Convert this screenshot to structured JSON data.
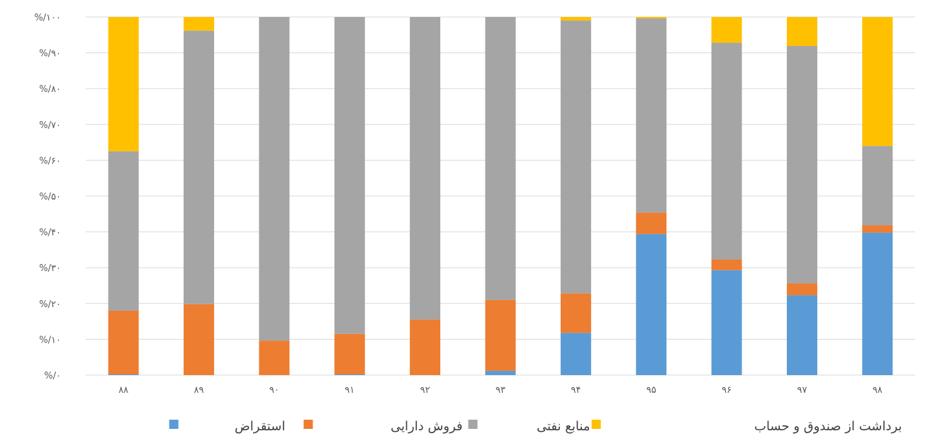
{
  "chart_data": {
    "type": "bar",
    "stacked": true,
    "percent": true,
    "categories": [
      "۸۸",
      "۸۹",
      "۹۰",
      "۹۱",
      "۹۲",
      "۹۳",
      "۹۴",
      "۹۵",
      "۹۶",
      "۹۷",
      "۹۸"
    ],
    "series": [
      {
        "name": "استقراض",
        "color": "#5B9BD5",
        "values": [
          0.2,
          0,
          0,
          0.2,
          0,
          1.2,
          11.8,
          39.4,
          29.3,
          22.3,
          39.8
        ]
      },
      {
        "name": "فروش دارایی",
        "color": "#ED7D31",
        "values": [
          17.8,
          19.8,
          9.6,
          11.3,
          15.5,
          19.8,
          11.0,
          6.0,
          3.0,
          3.3,
          2.0
        ]
      },
      {
        "name": "منابع نفتی",
        "color": "#A5A5A5",
        "values": [
          44.5,
          76.4,
          90.4,
          88.5,
          84.5,
          79.0,
          76.2,
          54.2,
          60.5,
          66.3,
          22.2
        ]
      },
      {
        "name": "برداشت از صندوق و حساب",
        "color": "#FFC000",
        "values": [
          37.5,
          3.8,
          0,
          0,
          0,
          0,
          1.0,
          0.4,
          7.2,
          8.1,
          36.0
        ]
      }
    ],
    "yticks": [
      "%/۰",
      "%/۱۰",
      "%/۲۰",
      "%/۳۰",
      "%/۴۰",
      "%/۵۰",
      "%/۶۰",
      "%/۷۰",
      "%/۸۰",
      "%/۹۰",
      "%/۱۰۰"
    ],
    "ylim": [
      0,
      100
    ],
    "grid": true,
    "legend": "bottom"
  }
}
